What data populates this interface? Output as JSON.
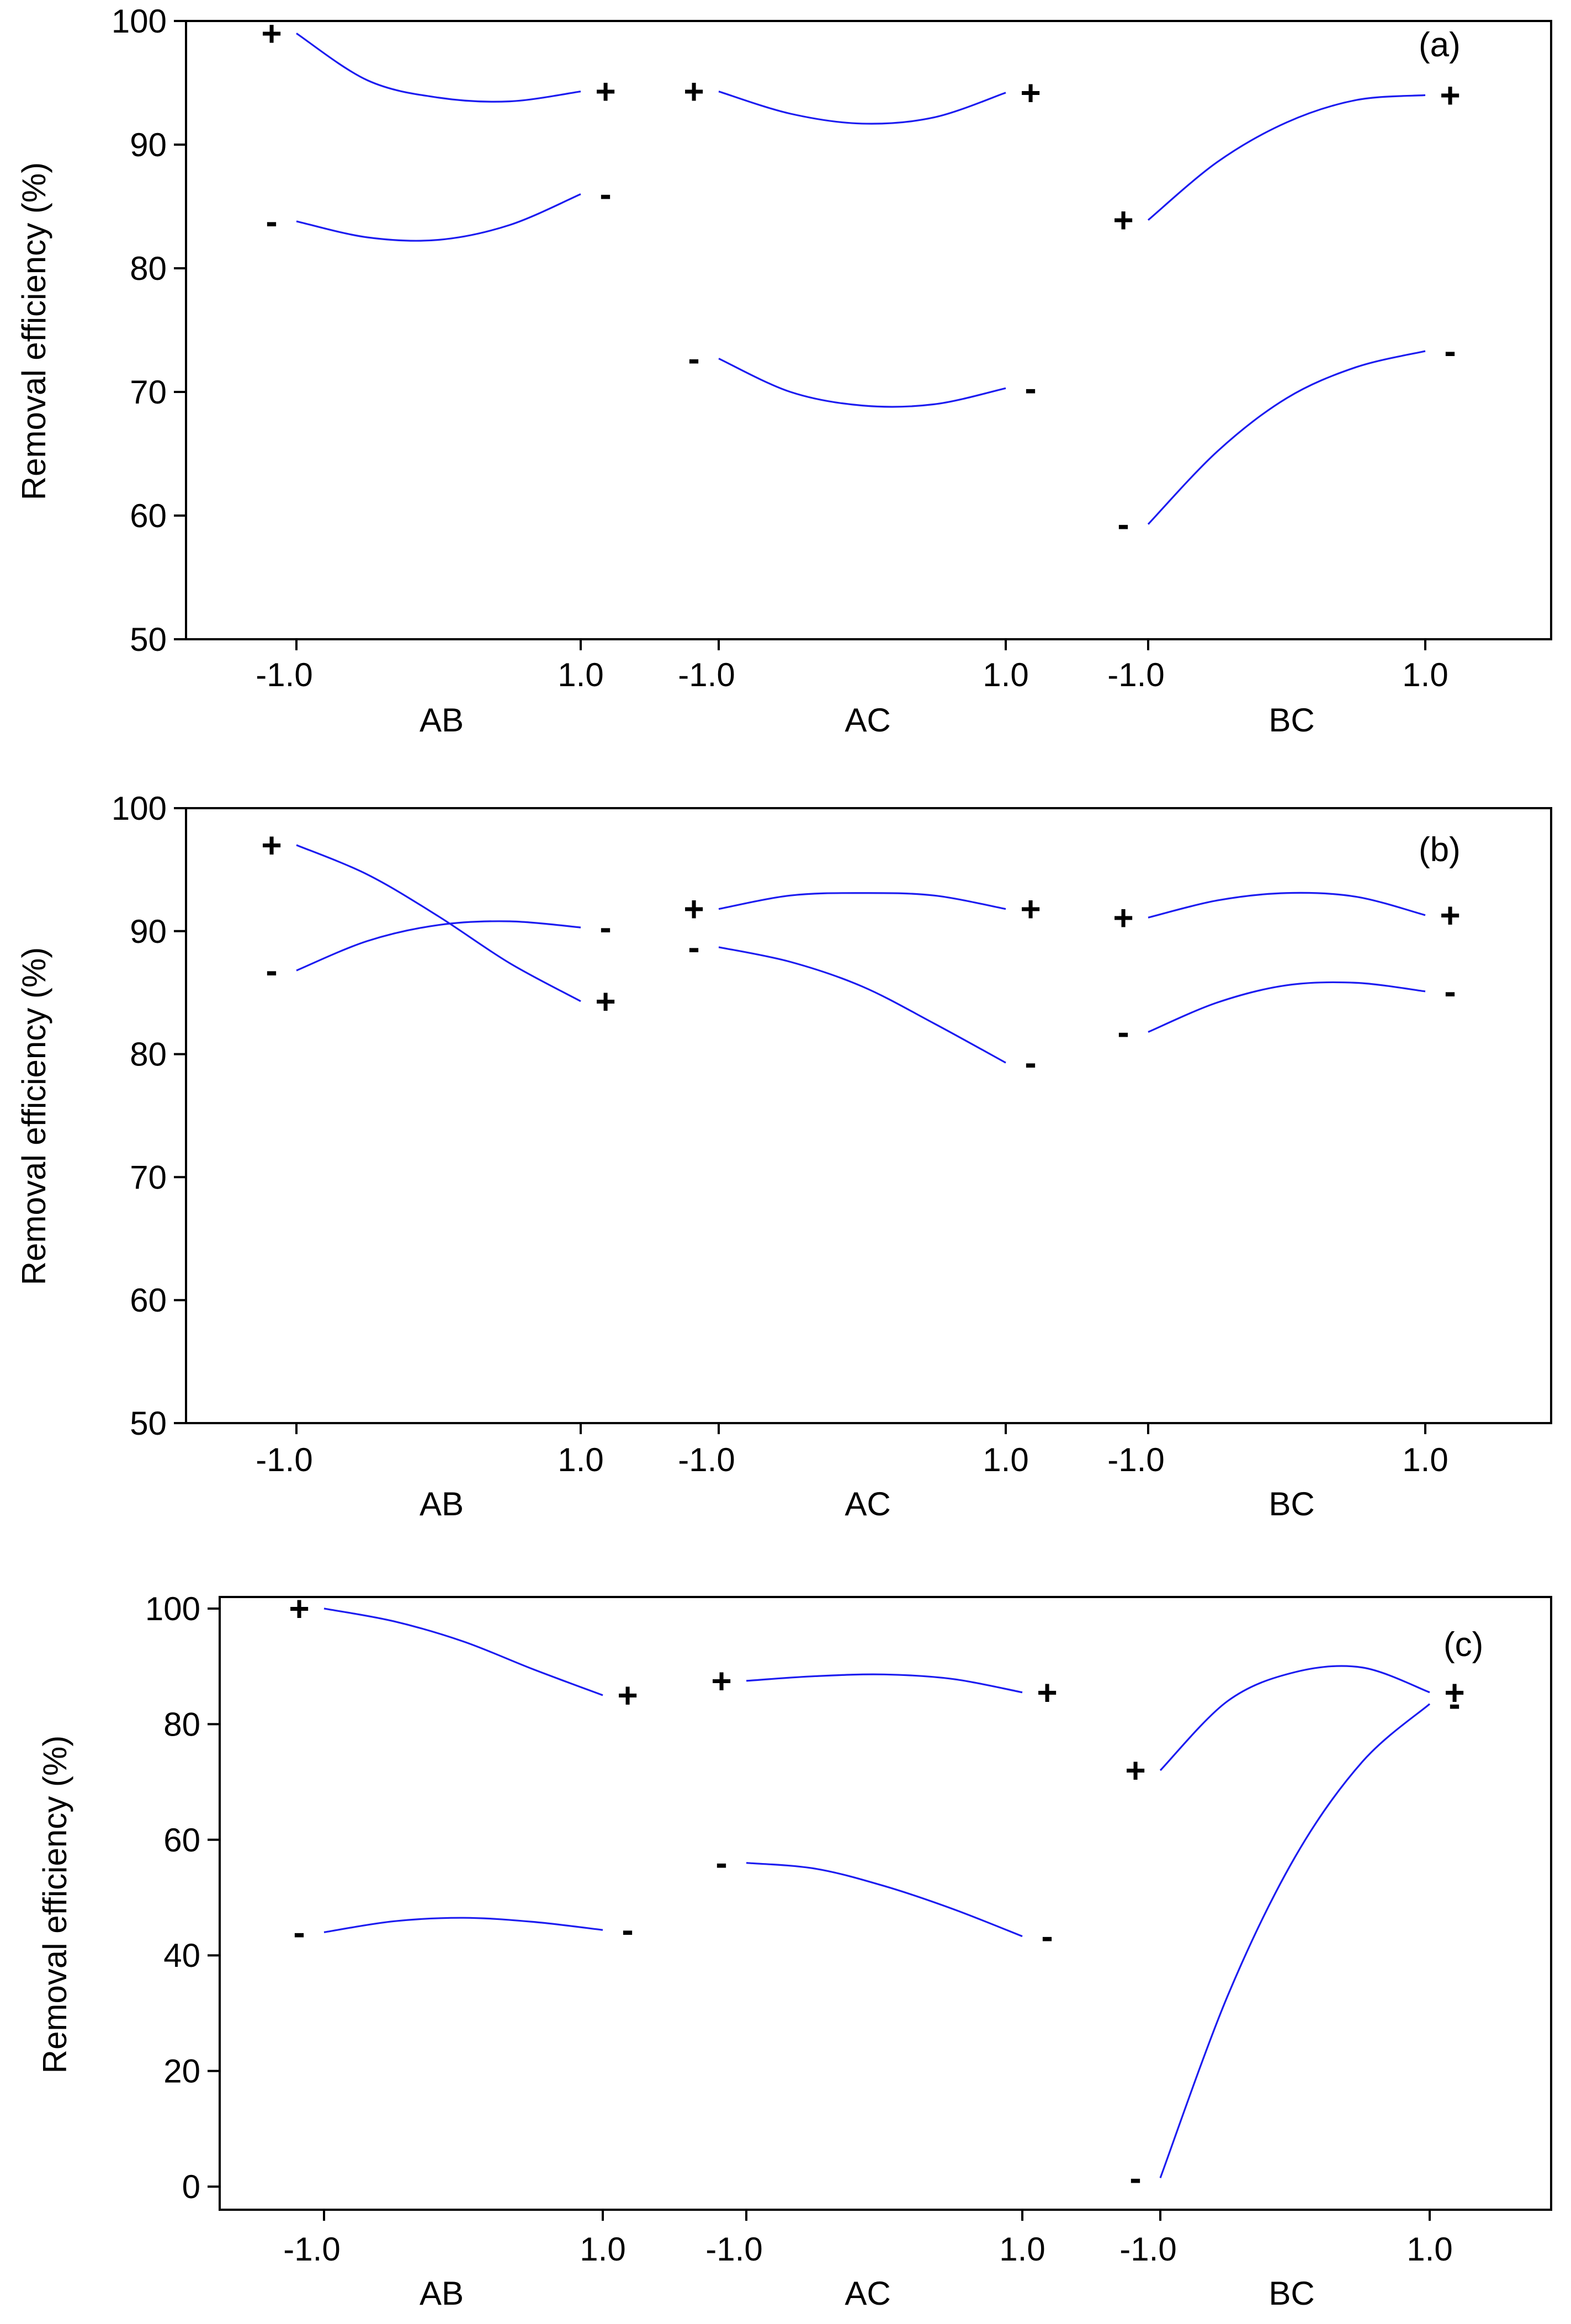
{
  "chart_data": [
    {
      "type": "line",
      "panel_label": "(a)",
      "ylabel": "Removal efficiency (%)",
      "ylim": [
        50,
        100
      ],
      "yticks": [
        50,
        60,
        70,
        80,
        90,
        100
      ],
      "ytick_labels": [
        "50",
        "60",
        "70",
        "80",
        "90",
        "100"
      ],
      "groups": [
        {
          "xlabel": "AB",
          "tick_labels": [
            "-1.0",
            "1.0"
          ],
          "series": [
            {
              "name": "+",
              "x": [
                -1,
                -0.5,
                0,
                0.5,
                1
              ],
              "values": [
                99.0,
                95.2,
                93.8,
                93.5,
                94.3
              ]
            },
            {
              "name": "-",
              "x": [
                -1,
                -0.5,
                0,
                0.5,
                1
              ],
              "values": [
                83.8,
                82.5,
                82.3,
                83.5,
                86.0
              ]
            }
          ]
        },
        {
          "xlabel": "AC",
          "tick_labels": [
            "-1.0",
            "1.0"
          ],
          "series": [
            {
              "name": "+",
              "x": [
                -1,
                -0.5,
                0,
                0.5,
                1
              ],
              "values": [
                94.3,
                92.5,
                91.7,
                92.2,
                94.2
              ]
            },
            {
              "name": "-",
              "x": [
                -1,
                -0.5,
                0,
                0.5,
                1
              ],
              "values": [
                72.7,
                70.0,
                68.9,
                69.0,
                70.3
              ]
            }
          ]
        },
        {
          "xlabel": "BC",
          "tick_labels": [
            "-1.0",
            "1.0"
          ],
          "series": [
            {
              "name": "+",
              "x": [
                -1,
                -0.5,
                0,
                0.5,
                1
              ],
              "values": [
                83.9,
                88.6,
                91.8,
                93.6,
                94.0
              ]
            },
            {
              "name": "-",
              "x": [
                -1,
                -0.5,
                0,
                0.5,
                1
              ],
              "values": [
                59.3,
                65.2,
                69.5,
                72.0,
                73.3
              ]
            }
          ]
        }
      ]
    },
    {
      "type": "line",
      "panel_label": "(b)",
      "ylabel": "Removal efficiency (%)",
      "ylim": [
        50,
        100
      ],
      "yticks": [
        50,
        60,
        70,
        80,
        90,
        100
      ],
      "ytick_labels": [
        "50",
        "60",
        "70",
        "80",
        "90",
        "100"
      ],
      "groups": [
        {
          "xlabel": "AB",
          "tick_labels": [
            "-1.0",
            "1.0"
          ],
          "series": [
            {
              "name": "+",
              "x": [
                -1,
                -0.5,
                0,
                0.5,
                1
              ],
              "values": [
                97.0,
                94.6,
                91.2,
                87.4,
                84.3
              ]
            },
            {
              "name": "-",
              "x": [
                -1,
                -0.5,
                0,
                0.5,
                1
              ],
              "values": [
                86.8,
                89.2,
                90.5,
                90.8,
                90.3
              ]
            }
          ]
        },
        {
          "xlabel": "AC",
          "tick_labels": [
            "-1.0",
            "1.0"
          ],
          "series": [
            {
              "name": "+",
              "x": [
                -1,
                -0.5,
                0,
                0.5,
                1
              ],
              "values": [
                91.8,
                92.9,
                93.1,
                92.9,
                91.8
              ]
            },
            {
              "name": "-",
              "x": [
                -1,
                -0.5,
                0,
                0.5,
                1
              ],
              "values": [
                88.7,
                87.5,
                85.5,
                82.5,
                79.3
              ]
            }
          ]
        },
        {
          "xlabel": "BC",
          "tick_labels": [
            "-1.0",
            "1.0"
          ],
          "series": [
            {
              "name": "+",
              "x": [
                -1,
                -0.5,
                0,
                0.5,
                1
              ],
              "values": [
                91.1,
                92.5,
                93.1,
                92.8,
                91.3
              ]
            },
            {
              "name": "-",
              "x": [
                -1,
                -0.5,
                0,
                0.5,
                1
              ],
              "values": [
                81.8,
                84.2,
                85.6,
                85.8,
                85.1
              ]
            }
          ]
        }
      ]
    },
    {
      "type": "line",
      "panel_label": "(c)",
      "ylabel": "Removal efficiency (%)",
      "ylim": [
        -4,
        102
      ],
      "yticks": [
        0,
        20,
        40,
        60,
        80,
        100
      ],
      "ytick_labels": [
        "0",
        "20",
        "40",
        "60",
        "80",
        "100"
      ],
      "groups": [
        {
          "xlabel": "AB",
          "tick_labels": [
            "-1.0",
            "1.0"
          ],
          "series": [
            {
              "name": "+",
              "x": [
                -1,
                -0.5,
                0,
                0.5,
                1
              ],
              "values": [
                100.0,
                97.8,
                94.3,
                89.5,
                85.0
              ]
            },
            {
              "name": "-",
              "x": [
                -1,
                -0.5,
                0,
                0.5,
                1
              ],
              "values": [
                44.0,
                45.9,
                46.5,
                45.8,
                44.4
              ]
            }
          ]
        },
        {
          "xlabel": "AC",
          "tick_labels": [
            "-1.0",
            "1.0"
          ],
          "series": [
            {
              "name": "+",
              "x": [
                -1,
                -0.5,
                0,
                0.5,
                1
              ],
              "values": [
                87.5,
                88.3,
                88.6,
                87.8,
                85.5
              ]
            },
            {
              "name": "-",
              "x": [
                -1,
                -0.5,
                0,
                0.5,
                1
              ],
              "values": [
                56.0,
                55.0,
                52.0,
                48.0,
                43.3
              ]
            }
          ]
        },
        {
          "xlabel": "BC",
          "tick_labels": [
            "-1.0",
            "1.0"
          ],
          "series": [
            {
              "name": "+",
              "x": [
                -1,
                -0.5,
                0,
                0.5,
                1
              ],
              "values": [
                72.0,
                84.0,
                89.0,
                89.8,
                85.5
              ]
            },
            {
              "name": "-",
              "x": [
                -1,
                -0.5,
                0,
                0.5,
                1
              ],
              "values": [
                1.5,
                33.0,
                57.0,
                73.5,
                83.5
              ]
            }
          ]
        }
      ]
    }
  ]
}
